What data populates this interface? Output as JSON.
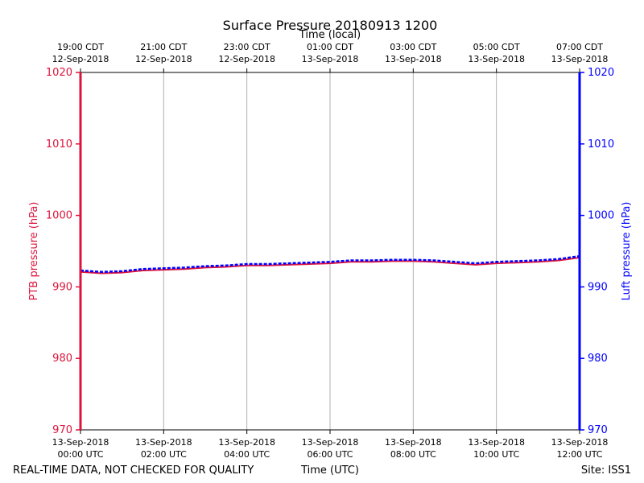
{
  "chart_data": {
    "type": "line",
    "title": "Surface Pressure 20180913 1200",
    "top_axis_label": "Time (local)",
    "xlabel": "Time (UTC)",
    "ylabel_left": "PTB pressure (hPa)",
    "ylabel_right": "Luft pressure (hPa)",
    "ylim": [
      970,
      1020
    ],
    "yticks": [
      970,
      980,
      990,
      1000,
      1010,
      1020
    ],
    "xlim_hours_utc": [
      0,
      12
    ],
    "grid": "vertical",
    "bottom_ticks": [
      {
        "hour": 0,
        "date": "13-Sep-2018",
        "time": "00:00 UTC"
      },
      {
        "hour": 2,
        "date": "13-Sep-2018",
        "time": "02:00 UTC"
      },
      {
        "hour": 4,
        "date": "13-Sep-2018",
        "time": "04:00 UTC"
      },
      {
        "hour": 6,
        "date": "13-Sep-2018",
        "time": "06:00 UTC"
      },
      {
        "hour": 8,
        "date": "13-Sep-2018",
        "time": "08:00 UTC"
      },
      {
        "hour": 10,
        "date": "13-Sep-2018",
        "time": "10:00 UTC"
      },
      {
        "hour": 12,
        "date": "13-Sep-2018",
        "time": "12:00 UTC"
      }
    ],
    "top_ticks": [
      {
        "hour": 0,
        "time": "19:00 CDT",
        "date": "12-Sep-2018"
      },
      {
        "hour": 2,
        "time": "21:00 CDT",
        "date": "12-Sep-2018"
      },
      {
        "hour": 4,
        "time": "23:00 CDT",
        "date": "12-Sep-2018"
      },
      {
        "hour": 6,
        "time": "01:00 CDT",
        "date": "13-Sep-2018"
      },
      {
        "hour": 8,
        "time": "03:00 CDT",
        "date": "13-Sep-2018"
      },
      {
        "hour": 10,
        "time": "05:00 CDT",
        "date": "13-Sep-2018"
      },
      {
        "hour": 12,
        "time": "07:00 CDT",
        "date": "13-Sep-2018"
      }
    ],
    "series": [
      {
        "color": "#dc143c",
        "x": [
          0,
          0.5,
          1,
          1.5,
          2,
          2.5,
          3,
          3.5,
          4,
          4.5,
          5,
          5.5,
          6,
          6.5,
          7,
          7.5,
          8,
          8.5,
          9,
          9.5,
          10,
          10.5,
          11,
          11.5,
          12
        ],
        "y": [
          992.1,
          991.9,
          992.0,
          992.3,
          992.4,
          992.5,
          992.7,
          992.8,
          993.0,
          993.0,
          993.1,
          993.2,
          993.3,
          993.5,
          993.5,
          993.6,
          993.6,
          993.5,
          993.3,
          993.1,
          993.3,
          993.4,
          993.5,
          993.7,
          994.1
        ]
      },
      {
        "color": "#0000ff",
        "x": [
          0,
          0.5,
          1,
          1.5,
          2,
          2.5,
          3,
          3.5,
          4,
          4.5,
          5,
          5.5,
          6,
          6.5,
          7,
          7.5,
          8,
          8.5,
          9,
          9.5,
          10,
          10.5,
          11,
          11.5,
          12
        ],
        "y": [
          992.3,
          992.1,
          992.2,
          992.5,
          992.6,
          992.7,
          992.9,
          993.0,
          993.2,
          993.2,
          993.3,
          993.4,
          993.5,
          993.7,
          993.7,
          993.8,
          993.8,
          993.7,
          993.5,
          993.3,
          993.5,
          993.6,
          993.7,
          993.9,
          994.3
        ]
      }
    ]
  },
  "footer": {
    "left": "REAL-TIME DATA, NOT CHECKED FOR QUALITY",
    "center": "Time (UTC)",
    "right": "Site: ISS1"
  },
  "colors": {
    "left_axis": "#dc143c",
    "right_axis": "#0000ff",
    "grid": "#b0b0b0"
  }
}
